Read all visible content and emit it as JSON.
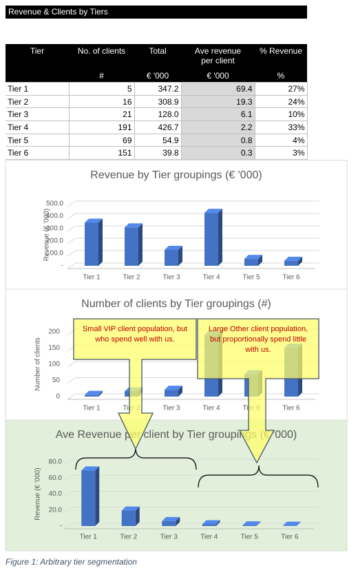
{
  "header": {
    "title": "Revenue & Clients by Tiers"
  },
  "table": {
    "columns": [
      "Tier",
      "No. of clients",
      "Total",
      "Ave revenue per client",
      "% Revenue"
    ],
    "units": [
      "#",
      "€ '000",
      "€ '000",
      "%"
    ],
    "rows": [
      [
        "Tier 1",
        "5",
        "347.2",
        "69.4",
        "27%"
      ],
      [
        "Tier 2",
        "16",
        "308.9",
        "19.3",
        "24%"
      ],
      [
        "Tier 3",
        "21",
        "128.0",
        "6.1",
        "10%"
      ],
      [
        "Tier 4",
        "191",
        "426.7",
        "2.2",
        "33%"
      ],
      [
        "Tier 5",
        "69",
        "54.9",
        "0.8",
        "4%"
      ],
      [
        "Tier 6",
        "151",
        "39.8",
        "0.3",
        "3%"
      ]
    ]
  },
  "chart_data": [
    {
      "type": "bar3d",
      "title": "Revenue by Tier groupings (€ '000)",
      "y_label": "Revenue (€ '000)",
      "categories": [
        "Tier 1",
        "Tier 2",
        "Tier 3",
        "Tier 4",
        "Tier 5",
        "Tier 6"
      ],
      "values": [
        347.2,
        308.9,
        128.0,
        426.7,
        54.9,
        39.8
      ],
      "color": "#4472c4",
      "ylim": [
        0,
        500
      ],
      "yticks": [
        {
          "value": 0,
          "label": "-"
        },
        {
          "value": 100,
          "label": "100.0"
        },
        {
          "value": 200,
          "label": "200.0"
        },
        {
          "value": 300,
          "label": "300.0"
        },
        {
          "value": 400,
          "label": "400.0"
        },
        {
          "value": 500,
          "label": "500.0"
        }
      ],
      "grid": true
    },
    {
      "type": "bar3d",
      "title": "Number of clients by Tier groupings (#)",
      "y_label": "Number of clients",
      "categories": [
        "Tier 1",
        "Tier 2",
        "Tier 3",
        "Tier 4",
        "Tier 5",
        "Tier 6"
      ],
      "values": [
        5,
        16,
        21,
        191,
        69,
        151
      ],
      "color": "#4472c4",
      "ylim": [
        0,
        200
      ],
      "yticks": [
        0,
        50,
        100,
        150,
        200
      ],
      "grid": true
    },
    {
      "type": "bar3d",
      "title": "Ave Revenue per client by Tier groupings (€ '000)",
      "y_label": "Revenue (€ '000)",
      "categories": [
        "Tier 1",
        "Tier 2",
        "Tier 3",
        "Tier 4",
        "Tier 5",
        "Tier 6"
      ],
      "values": [
        69.4,
        19.3,
        6.1,
        2.2,
        0.8,
        0.3
      ],
      "color": "#4472c4",
      "ylim": [
        0,
        80
      ],
      "yticks": [
        {
          "value": 0,
          "label": "-"
        },
        {
          "value": 20,
          "label": "20.0"
        },
        {
          "value": 40,
          "label": "40.0"
        },
        {
          "value": 60,
          "label": "60.0"
        },
        {
          "value": 80,
          "label": "80.0"
        }
      ],
      "grid": true
    }
  ],
  "callouts": [
    "Small VIP client population, but who spend well with us.",
    "Large Other client population, but proportionally spend little with us."
  ],
  "caption": "Figure 1: Arbitrary tier segmentation"
}
